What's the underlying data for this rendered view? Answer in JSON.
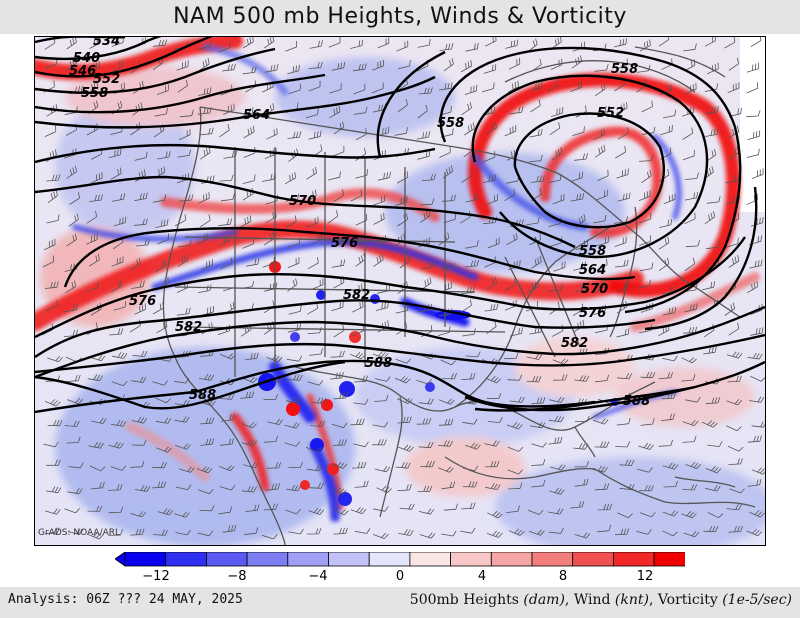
{
  "title": "NAM 500 mb Heights, Winds & Vorticity",
  "credit": "GrADS: NOAA/ARL",
  "footer": {
    "analysis": "Analysis: 06Z ??? 24 MAY, 2025",
    "fields": {
      "heights_label": "500mb Heights",
      "heights_unit": "(dam)",
      "wind_label": "Wind",
      "wind_unit": "(knt)",
      "vort_label": "Vorticity",
      "vort_unit": "(1e-5/sec)"
    }
  },
  "height_labels": [
    "534",
    "540",
    "546",
    "552",
    "558",
    "564",
    "570",
    "576",
    "582",
    "588"
  ],
  "map_labels": [
    {
      "id": "h534",
      "text": "534"
    },
    {
      "id": "h540",
      "text": "540"
    },
    {
      "id": "h546",
      "text": "546"
    },
    {
      "id": "h552w",
      "text": "552"
    },
    {
      "id": "h558w",
      "text": "558"
    },
    {
      "id": "h564w",
      "text": "564"
    },
    {
      "id": "h570c",
      "text": "570"
    },
    {
      "id": "h576c",
      "text": "576"
    },
    {
      "id": "h576w",
      "text": "576"
    },
    {
      "id": "h582c",
      "text": "582"
    },
    {
      "id": "h582w",
      "text": "582"
    },
    {
      "id": "h588c",
      "text": "588"
    },
    {
      "id": "h588w",
      "text": "588"
    },
    {
      "id": "h558ne",
      "text": "558"
    },
    {
      "id": "h552ne",
      "text": "552"
    },
    {
      "id": "h558lake",
      "text": "558"
    },
    {
      "id": "h558e",
      "text": "558"
    },
    {
      "id": "h564e",
      "text": "564"
    },
    {
      "id": "h570e",
      "text": "570"
    },
    {
      "id": "h576e",
      "text": "576"
    },
    {
      "id": "h582e",
      "text": "582"
    },
    {
      "id": "h588e",
      "text": "588"
    }
  ],
  "colorbar": {
    "ticks": [
      "−12",
      "−8",
      "−4",
      "0",
      "4",
      "8",
      "12"
    ],
    "colors": [
      "#0a00f0",
      "#3030f0",
      "#5a5af0",
      "#7d7df2",
      "#a0a0f5",
      "#c2c2f8",
      "#e4e4fa",
      "#fbe6e6",
      "#f8c8c8",
      "#f5a5a5",
      "#f27d7d",
      "#f05050",
      "#f02828",
      "#f00000"
    ]
  },
  "colors": {
    "positive": "#f00000",
    "negative": "#0a00f0",
    "contour": "#000000",
    "borders": "#555555"
  }
}
